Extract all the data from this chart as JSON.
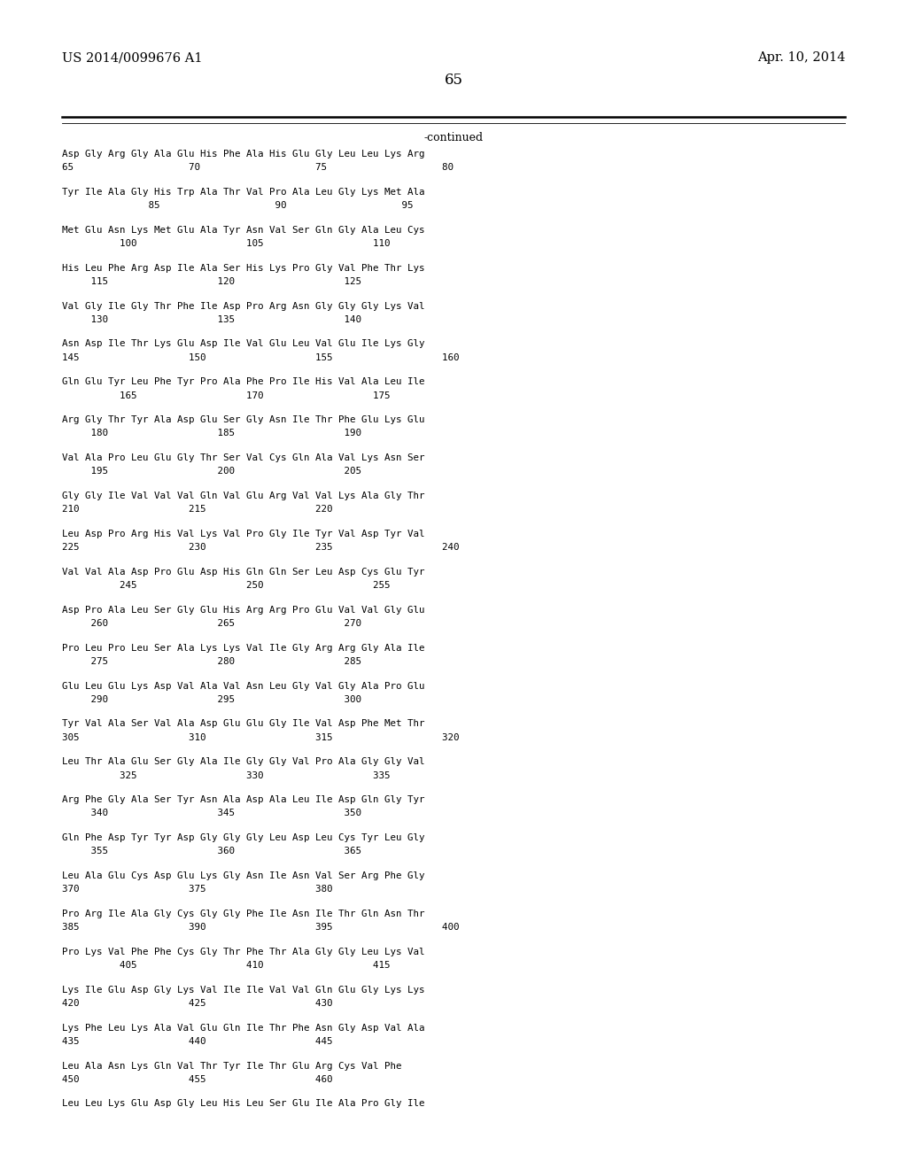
{
  "header_left": "US 2014/0099676 A1",
  "header_right": "Apr. 10, 2014",
  "page_number": "65",
  "continued_label": "-continued",
  "background_color": "#ffffff",
  "text_color": "#000000",
  "sequence_blocks": [
    {
      "aa": "Asp Gly Arg Gly Ala Glu His Phe Ala His Glu Gly Leu Leu Lys Arg",
      "num": "65                    70                    75                    80"
    },
    {
      "aa": "Tyr Ile Ala Gly His Trp Ala Thr Val Pro Ala Leu Gly Lys Met Ala",
      "num": "               85                    90                    95"
    },
    {
      "aa": "Met Glu Asn Lys Met Glu Ala Tyr Asn Val Ser Gln Gly Ala Leu Cys",
      "num": "          100                   105                   110"
    },
    {
      "aa": "His Leu Phe Arg Asp Ile Ala Ser His Lys Pro Gly Val Phe Thr Lys",
      "num": "     115                   120                   125"
    },
    {
      "aa": "Val Gly Ile Gly Thr Phe Ile Asp Pro Arg Asn Gly Gly Gly Lys Val",
      "num": "     130                   135                   140"
    },
    {
      "aa": "Asn Asp Ile Thr Lys Glu Asp Ile Val Glu Leu Val Glu Ile Lys Gly",
      "num": "145                   150                   155                   160"
    },
    {
      "aa": "Gln Glu Tyr Leu Phe Tyr Pro Ala Phe Pro Ile His Val Ala Leu Ile",
      "num": "          165                   170                   175"
    },
    {
      "aa": "Arg Gly Thr Tyr Ala Asp Glu Ser Gly Asn Ile Thr Phe Glu Lys Glu",
      "num": "     180                   185                   190"
    },
    {
      "aa": "Val Ala Pro Leu Glu Gly Thr Ser Val Cys Gln Ala Val Lys Asn Ser",
      "num": "     195                   200                   205"
    },
    {
      "aa": "Gly Gly Ile Val Val Val Gln Val Glu Arg Val Val Lys Ala Gly Thr",
      "num": "210                   215                   220"
    },
    {
      "aa": "Leu Asp Pro Arg His Val Lys Val Pro Gly Ile Tyr Val Asp Tyr Val",
      "num": "225                   230                   235                   240"
    },
    {
      "aa": "Val Val Ala Asp Pro Glu Asp His Gln Gln Ser Leu Asp Cys Glu Tyr",
      "num": "          245                   250                   255"
    },
    {
      "aa": "Asp Pro Ala Leu Ser Gly Glu His Arg Arg Pro Glu Val Val Gly Glu",
      "num": "     260                   265                   270"
    },
    {
      "aa": "Pro Leu Pro Leu Ser Ala Lys Lys Val Ile Gly Arg Arg Gly Ala Ile",
      "num": "     275                   280                   285"
    },
    {
      "aa": "Glu Leu Glu Lys Asp Val Ala Val Asn Leu Gly Val Gly Ala Pro Glu",
      "num": "     290                   295                   300"
    },
    {
      "aa": "Tyr Val Ala Ser Val Ala Asp Glu Glu Gly Ile Val Asp Phe Met Thr",
      "num": "305                   310                   315                   320"
    },
    {
      "aa": "Leu Thr Ala Glu Ser Gly Ala Ile Gly Gly Val Pro Ala Gly Gly Val",
      "num": "          325                   330                   335"
    },
    {
      "aa": "Arg Phe Gly Ala Ser Tyr Asn Ala Asp Ala Leu Ile Asp Gln Gly Tyr",
      "num": "     340                   345                   350"
    },
    {
      "aa": "Gln Phe Asp Tyr Tyr Asp Gly Gly Gly Leu Asp Leu Cys Tyr Leu Gly",
      "num": "     355                   360                   365"
    },
    {
      "aa": "Leu Ala Glu Cys Asp Glu Lys Gly Asn Ile Asn Val Ser Arg Phe Gly",
      "num": "370                   375                   380"
    },
    {
      "aa": "Pro Arg Ile Ala Gly Cys Gly Gly Phe Ile Asn Ile Thr Gln Asn Thr",
      "num": "385                   390                   395                   400"
    },
    {
      "aa": "Pro Lys Val Phe Phe Cys Gly Thr Phe Thr Ala Gly Gly Leu Lys Val",
      "num": "          405                   410                   415"
    },
    {
      "aa": "Lys Ile Glu Asp Gly Lys Val Ile Ile Val Val Gln Glu Gly Lys Lys",
      "num": "420                   425                   430"
    },
    {
      "aa": "Lys Phe Leu Lys Ala Val Glu Gln Ile Thr Phe Asn Gly Asp Val Ala",
      "num": "435                   440                   445"
    },
    {
      "aa": "Leu Ala Asn Lys Gln Val Thr Tyr Ile Thr Glu Arg Cys Val Phe",
      "num": "450                   455                   460"
    },
    {
      "aa": "Leu Leu Lys Glu Asp Gly Leu His Leu Ser Glu Ile Ala Pro Gly Ile",
      "num": ""
    }
  ]
}
